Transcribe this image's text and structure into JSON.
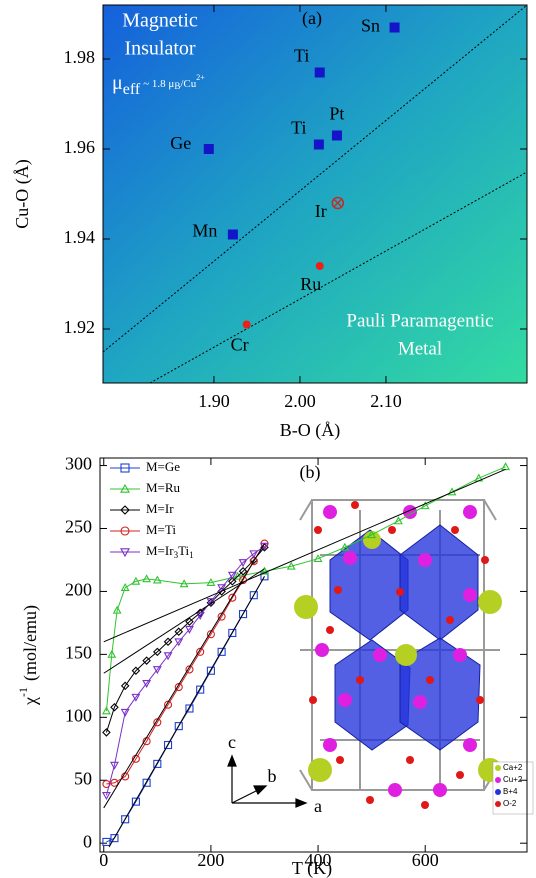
{
  "chart_data": [
    {
      "type": "scatter",
      "panel_label": "(a)",
      "x_label": "B-O (Å)",
      "y_label": "Cu-O (Å)",
      "xlim": [
        1.771,
        2.264
      ],
      "ylim": [
        1.908,
        1.992
      ],
      "xticks": [
        {
          "value": 1.9,
          "label": "1.90"
        },
        {
          "value": 2,
          "label": "2.00"
        },
        {
          "value": 2.1,
          "label": "2.10"
        }
      ],
      "yticks": [
        1.92,
        1.94,
        1.96,
        1.98
      ],
      "region_top": [
        "Magnetic",
        "Insulator"
      ],
      "mu_label": [
        "μ",
        "eff",
        "~ 1.8 μ",
        "B",
        "/Cu",
        "2+"
      ],
      "region_bottom": [
        "Pauli Paramagentic",
        "Metal"
      ],
      "points": [
        {
          "label": "Sn",
          "x": 2.11,
          "y": 1.987,
          "color": "#1414c8",
          "marker": "square"
        },
        {
          "label": "Ti",
          "x": 2.023,
          "y": 1.977,
          "color": "#1414c8",
          "marker": "square"
        },
        {
          "label": "Ti",
          "x": 2.022,
          "y": 1.961,
          "color": "#1414c8",
          "marker": "square"
        },
        {
          "label": "Pt",
          "x": 2.043,
          "y": 1.963,
          "color": "#1414c8",
          "marker": "square"
        },
        {
          "label": "Ge",
          "x": 1.894,
          "y": 1.96,
          "color": "#1414c8",
          "marker": "square"
        },
        {
          "label": "Mn",
          "x": 1.922,
          "y": 1.941,
          "color": "#1414c8",
          "marker": "square"
        },
        {
          "label": "Ir",
          "x": 2.044,
          "y": 1.948,
          "color": "#c0302a",
          "marker": "circled-x"
        },
        {
          "label": "Ru",
          "x": 2.023,
          "y": 1.934,
          "color": "#e8221a",
          "marker": "circle"
        },
        {
          "label": "Cr",
          "x": 1.938,
          "y": 1.921,
          "color": "#e8221a",
          "marker": "circle"
        }
      ]
    },
    {
      "type": "line",
      "panel_label": "(b)",
      "x_label": "T (K)",
      "y_label": [
        "χ",
        "-1",
        "(mol/emu)"
      ],
      "xlim": [
        -7,
        790
      ],
      "ylim": [
        -7,
        306
      ],
      "xticks": [
        0,
        200,
        400,
        600
      ],
      "yticks": [
        0,
        50,
        100,
        150,
        200,
        250,
        300
      ],
      "series": [
        {
          "name": "M=Ge",
          "color": "#1f3fd0",
          "marker": "square",
          "x": [
            5,
            20,
            40,
            60,
            80,
            100,
            120,
            140,
            160,
            180,
            200,
            220,
            240,
            260,
            280,
            300
          ],
          "values": [
            1,
            4,
            19,
            33,
            48,
            63,
            78,
            93,
            107,
            122,
            137,
            152,
            167,
            182,
            197,
            212
          ]
        },
        {
          "name": "M=Ru",
          "color": "#2fc42f",
          "marker": "triangle",
          "x": [
            5,
            15,
            25,
            40,
            60,
            80,
            100,
            150,
            200,
            250,
            300,
            350,
            400,
            450,
            500,
            550,
            600,
            650,
            700,
            750
          ],
          "values": [
            105,
            150,
            185,
            203,
            208,
            210,
            209,
            206,
            207,
            212,
            216,
            220,
            226,
            235,
            245,
            256,
            268,
            279,
            290,
            299
          ]
        },
        {
          "name": "M=Ir",
          "color": "#000000",
          "marker": "diamond",
          "x": [
            5,
            20,
            40,
            60,
            80,
            100,
            120,
            140,
            160,
            180,
            200,
            220,
            240,
            260,
            280,
            300
          ],
          "values": [
            88,
            108,
            125,
            137,
            145,
            152,
            160,
            168,
            176,
            183,
            191,
            200,
            208,
            216,
            225,
            235
          ]
        },
        {
          "name": "M=Ti",
          "color": "#d42020",
          "marker": "circle",
          "x": [
            5,
            20,
            40,
            60,
            80,
            100,
            120,
            140,
            160,
            180,
            200,
            220,
            240,
            260,
            280,
            300
          ],
          "values": [
            47,
            48,
            53,
            67,
            81,
            96,
            110,
            124,
            138,
            152,
            166,
            180,
            195,
            209,
            224,
            238
          ]
        },
        {
          "name": [
            "M=Ir",
            "3",
            "Ti",
            "1"
          ],
          "color": "#7a2fc8",
          "marker": "down-triangle",
          "x": [
            5,
            20,
            40,
            60,
            80,
            100,
            120,
            140,
            160,
            180,
            200,
            220,
            240,
            260,
            280,
            300
          ],
          "values": [
            38,
            62,
            104,
            116,
            127,
            138,
            149,
            160,
            170,
            181,
            192,
            203,
            213,
            223,
            230,
            236
          ]
        }
      ],
      "fit_lines": [
        {
          "x": [
            0,
            750
          ],
          "values": [
            160,
            297
          ]
        },
        {
          "x": [
            0,
            300
          ],
          "values": [
            135,
            218
          ]
        },
        {
          "x": [
            0,
            300
          ],
          "values": [
            28,
            238
          ]
        },
        {
          "x": [
            10,
            300
          ],
          "values": [
            -3,
            212
          ]
        }
      ],
      "axes_labels": [
        "c",
        "b",
        "a"
      ],
      "inset_legend": [
        "Ca+2",
        "Cu+2",
        "B+4",
        "O-2"
      ]
    }
  ]
}
